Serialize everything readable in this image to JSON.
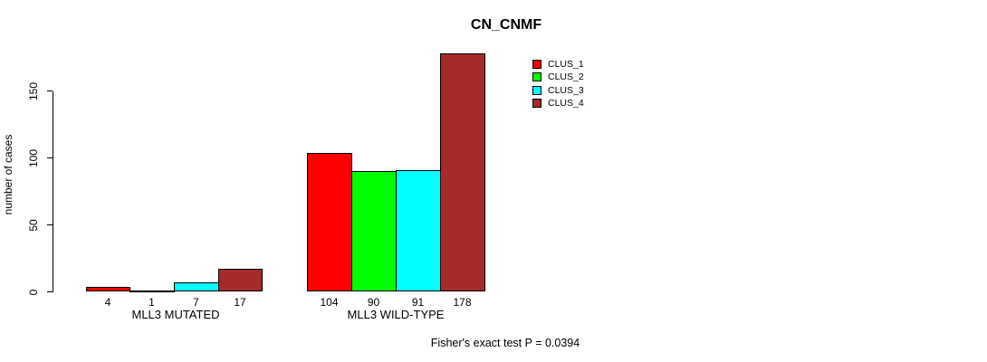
{
  "chart_data": {
    "type": "bar",
    "title": "CN_CNMF",
    "ylabel": "number of cases",
    "xlabel": "",
    "categories": [
      "MLL3 MUTATED",
      "MLL3 WILD-TYPE"
    ],
    "series": [
      {
        "name": "CLUS_1",
        "color": "#FF0000",
        "values": [
          4,
          104
        ]
      },
      {
        "name": "CLUS_2",
        "color": "#00FF00",
        "values": [
          1,
          90
        ]
      },
      {
        "name": "CLUS_3",
        "color": "#00FFFF",
        "values": [
          7,
          91
        ]
      },
      {
        "name": "CLUS_4",
        "color": "#A52A2A",
        "values": [
          17,
          178
        ]
      }
    ],
    "yticks": [
      0,
      50,
      100,
      150
    ],
    "ylim": [
      0,
      178
    ],
    "grid": false,
    "bar_outline_color": "#000000",
    "value_labels_shown": true,
    "legend_position": "top-right",
    "legend_entries": [
      "CLUS_1",
      "CLUS_2",
      "CLUS_3",
      "CLUS_4"
    ],
    "annotation": "Fisher's exact test P = 0.0394"
  }
}
